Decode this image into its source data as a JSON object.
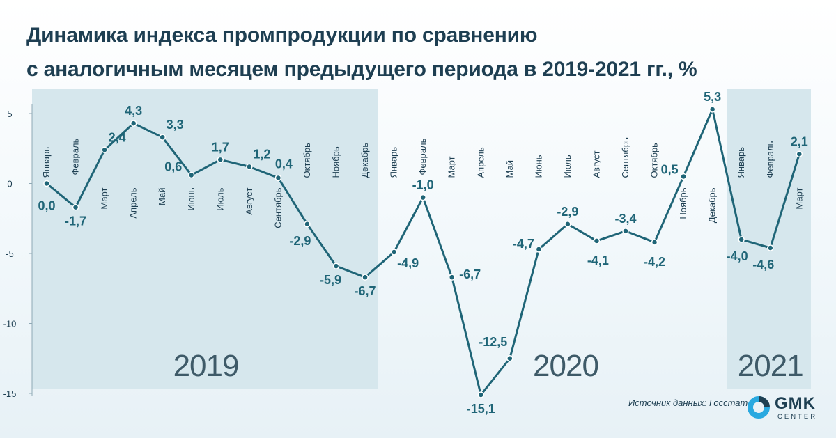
{
  "header": {
    "title_line1": "Динамика индекса промпродукции по сравнению",
    "title_line2": "с аналогичным месяцем предыдущего периода в 2019-2021 гг., %"
  },
  "source": "Источник данных: Госстат",
  "logo": {
    "name": "GMK",
    "sub": "CENTER"
  },
  "colors": {
    "line": "#1f6577",
    "label": "#1f6577",
    "band": "#d6e7ed",
    "title": "#1e3f52",
    "accent": "#29a9e0"
  },
  "chart_data": {
    "type": "line",
    "ylim": [
      -15,
      5
    ],
    "yticks": [
      5,
      0,
      -5,
      -10,
      -15
    ],
    "grid": false,
    "categories": [
      "Январь",
      "Февраль",
      "Март",
      "Апрель",
      "Май",
      "Июнь",
      "Июль",
      "Август",
      "Сентябрь",
      "Октябрь",
      "Ноябрь",
      "Декабрь",
      "Январь",
      "Февраль",
      "Март",
      "Апрель",
      "Май",
      "Июнь",
      "Июль",
      "Август",
      "Сентябрь",
      "Октябрь",
      "Ноябрь",
      "Декабрь",
      "Январь",
      "Февраль",
      "Март"
    ],
    "values": [
      0.0,
      -1.7,
      2.4,
      4.3,
      3.3,
      0.6,
      1.7,
      1.2,
      0.4,
      -2.9,
      -5.9,
      -6.7,
      -4.9,
      -1.0,
      -6.7,
      -15.1,
      -12.5,
      -4.7,
      -2.9,
      -4.1,
      -3.4,
      -4.2,
      0.5,
      5.3,
      -4.0,
      -4.6,
      2.1
    ],
    "value_labels": [
      "0,0",
      "-1,7",
      "2,4",
      "4,3",
      "3,3",
      "0,6",
      "1,7",
      "1,2",
      "0,4",
      "-2,9",
      "-5,9",
      "-6,7",
      "-4,9",
      "-1,0",
      "-6,7",
      "-15,1",
      "-12,5",
      "-4,7",
      "-2,9",
      "-4,1",
      "-3,4",
      "-4,2",
      "0,5",
      "5,3",
      "-4,0",
      "-4,6",
      "2,1"
    ],
    "years": [
      {
        "label": "2019",
        "from": 0,
        "to": 11,
        "shaded": true
      },
      {
        "label": "2020",
        "from": 12,
        "to": 23,
        "shaded": false
      },
      {
        "label": "2021",
        "from": 24,
        "to": 26,
        "shaded": true
      }
    ]
  }
}
